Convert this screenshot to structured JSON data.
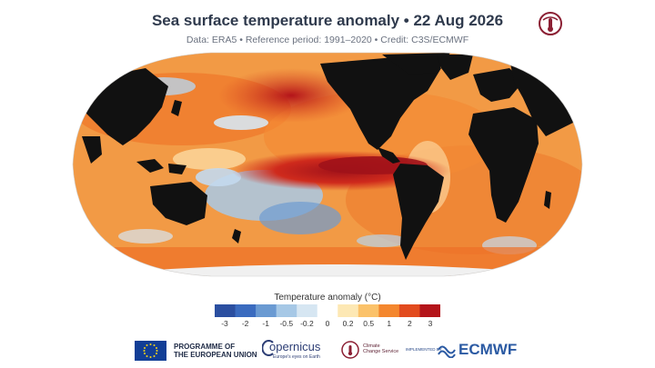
{
  "header": {
    "title": "Sea surface temperature anomaly • 22 Aug 2026",
    "subtitle": "Data: ERA5 • Reference period: 1991–2020 • Credit: C3S/ECMWF",
    "logo_icon": "thermometer-swirl-icon"
  },
  "map": {
    "projection": "robinson",
    "land_color": "#111111",
    "variable": "sea-surface-temperature-anomaly"
  },
  "legend": {
    "title": "Temperature anomaly (°C)",
    "ticks": [
      "-3",
      "-2",
      "-1",
      "-0.5",
      "-0.2",
      "0",
      "0.2",
      "0.5",
      "1",
      "2",
      "3"
    ],
    "colors": [
      "#2b4fa0",
      "#3a6bbf",
      "#6a9ad2",
      "#a6c8e6",
      "#d6e6f2",
      "#ffffff",
      "#fde8b4",
      "#fbc26a",
      "#f4872e",
      "#e24b1e",
      "#b4141a"
    ]
  },
  "footer": {
    "eu_line1": "PROGRAMME OF",
    "eu_line2": "THE EUROPEAN UNION",
    "copernicus": "opernicus",
    "copernicus_tagline": "Europe's eyes on Earth",
    "c3s_line1": "Climate",
    "c3s_line2": "Change Service",
    "implemented_by": "IMPLEMENTED BY",
    "ecmwf": "ECMWF"
  }
}
